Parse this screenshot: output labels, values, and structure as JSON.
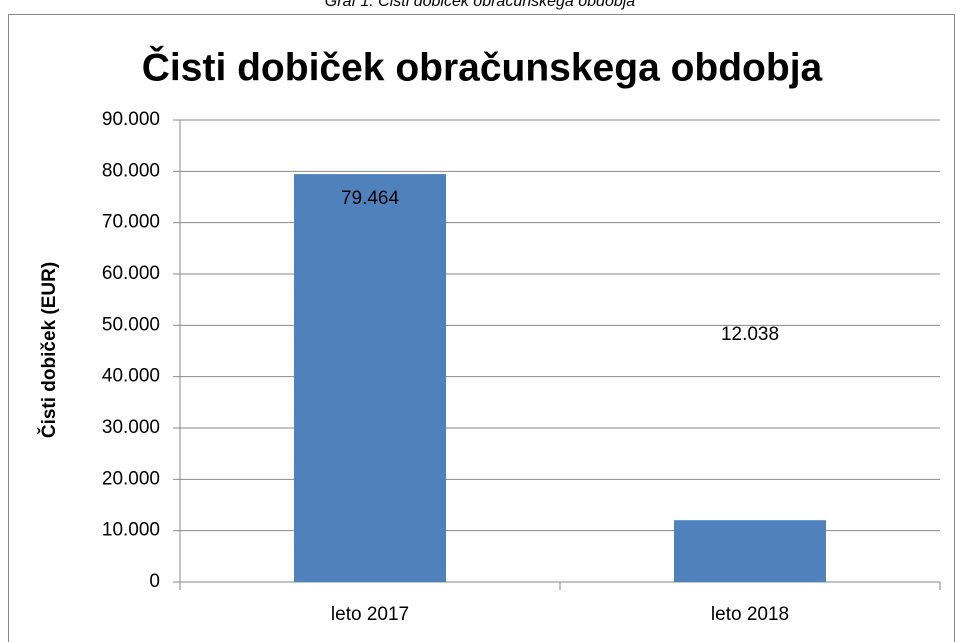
{
  "caption": "Graf 1: Čisti dobiček obračunskega obdobja",
  "chart_data": {
    "type": "bar",
    "title": "Čisti dobiček obračunskega obdobja",
    "y_label": "Čisti dobiček (EUR)",
    "categories": [
      "leto 2017",
      "leto 2018"
    ],
    "values": [
      79464,
      12038
    ],
    "value_labels": [
      "79.464",
      "12.038"
    ],
    "color": "#4f81bd",
    "ylim": [
      0,
      90000
    ],
    "yticks": [
      0,
      {
        "value": 10000,
        "label": "10.000"
      },
      {
        "value": 20000,
        "label": "20.000"
      },
      {
        "value": 30000,
        "label": "30.000"
      },
      {
        "value": 40000,
        "label": "40.000"
      },
      {
        "value": 50000,
        "label": "50.000"
      },
      {
        "value": 60000,
        "label": "60.000"
      },
      {
        "value": 70000,
        "label": "70.000"
      },
      {
        "value": 80000,
        "label": "80.000"
      },
      {
        "value": 90000,
        "label": "90.000"
      }
    ],
    "grid": true
  }
}
